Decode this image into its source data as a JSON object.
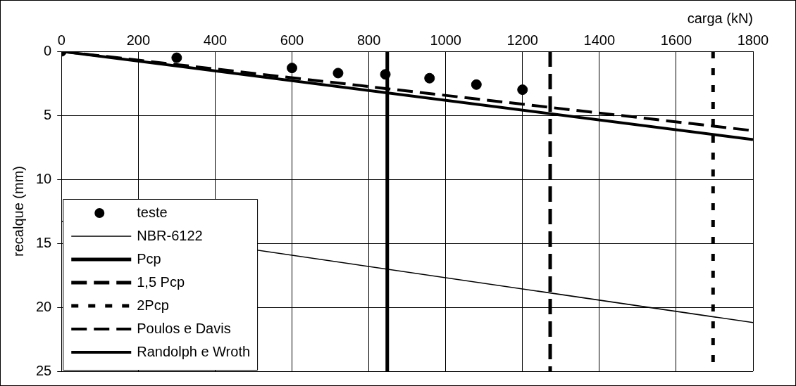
{
  "chart_data": {
    "type": "line",
    "xlabel": "carga (kN)",
    "ylabel": "recalque (mm)",
    "xlim": [
      0,
      1800
    ],
    "xticks": [
      0,
      200,
      400,
      600,
      800,
      1000,
      1200,
      1400,
      1600,
      1800
    ],
    "ylim": [
      25,
      0
    ],
    "yticks": [
      0,
      5,
      10,
      15,
      20,
      25
    ],
    "grid": true,
    "legend": "bottom left",
    "series": [
      {
        "name": "teste",
        "type": "scatter",
        "marker": "circle",
        "color": "#000000",
        "x": [
          0,
          300,
          600,
          720,
          843,
          958,
          1080,
          1200
        ],
        "values": [
          0,
          0.5,
          1.3,
          1.7,
          1.8,
          2.1,
          2.6,
          3.0
        ]
      },
      {
        "name": "NBR-6122",
        "type": "line",
        "marker": "none",
        "line_style": "solid",
        "color": "#000000",
        "x": [
          0,
          1800
        ],
        "values": [
          13.3,
          21.2
        ]
      },
      {
        "name": "Pcp",
        "type": "line",
        "marker": "none",
        "line_style": "solid",
        "color": "#000000",
        "x": [
          848,
          848
        ],
        "values": [
          0,
          25
        ]
      },
      {
        "name": "1,5 Pcp",
        "type": "line",
        "marker": "none",
        "line_style": "dashed",
        "color": "#000000",
        "x": [
          1272,
          1272
        ],
        "values": [
          0,
          25
        ]
      },
      {
        "name": "2Pcp",
        "type": "line",
        "marker": "none",
        "line_style": "dotted",
        "color": "#000000",
        "x": [
          1696,
          1696
        ],
        "values": [
          0,
          25
        ]
      },
      {
        "name": "Poulos e Davis",
        "type": "line",
        "marker": "none",
        "line_style": "dashed",
        "color": "#000000",
        "x": [
          0,
          1800
        ],
        "values": [
          0,
          6.2
        ]
      },
      {
        "name": "Randolph e Wroth",
        "type": "line",
        "marker": "none",
        "line_style": "solid",
        "color": "#000000",
        "x": [
          0,
          1800
        ],
        "values": [
          0,
          6.9
        ]
      }
    ]
  }
}
